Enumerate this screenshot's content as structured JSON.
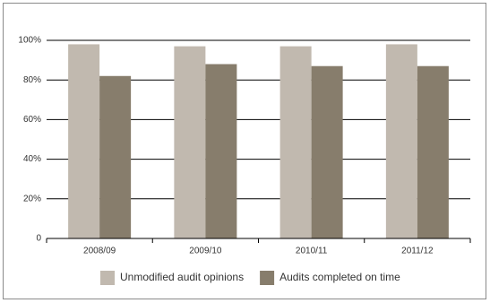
{
  "chart_data": {
    "type": "bar",
    "categories": [
      "2008/09",
      "2009/10",
      "2010/11",
      "2011/12"
    ],
    "series": [
      {
        "name": "Unmodified audit opinions",
        "color": "#c1b9af",
        "values": [
          98,
          97,
          97,
          98
        ]
      },
      {
        "name": "Audits completed on time",
        "color": "#877d6c",
        "values": [
          82,
          88,
          87,
          87
        ]
      }
    ],
    "ylim": [
      0,
      100
    ],
    "yticks": [
      0,
      {
        "value": 20,
        "label": "20%"
      },
      {
        "value": 40,
        "label": "40%"
      },
      {
        "value": 60,
        "label": "60%"
      },
      {
        "value": 80,
        "label": "80%"
      },
      {
        "value": 100,
        "label": "100%"
      }
    ],
    "grid": true,
    "legend": "bottom"
  }
}
